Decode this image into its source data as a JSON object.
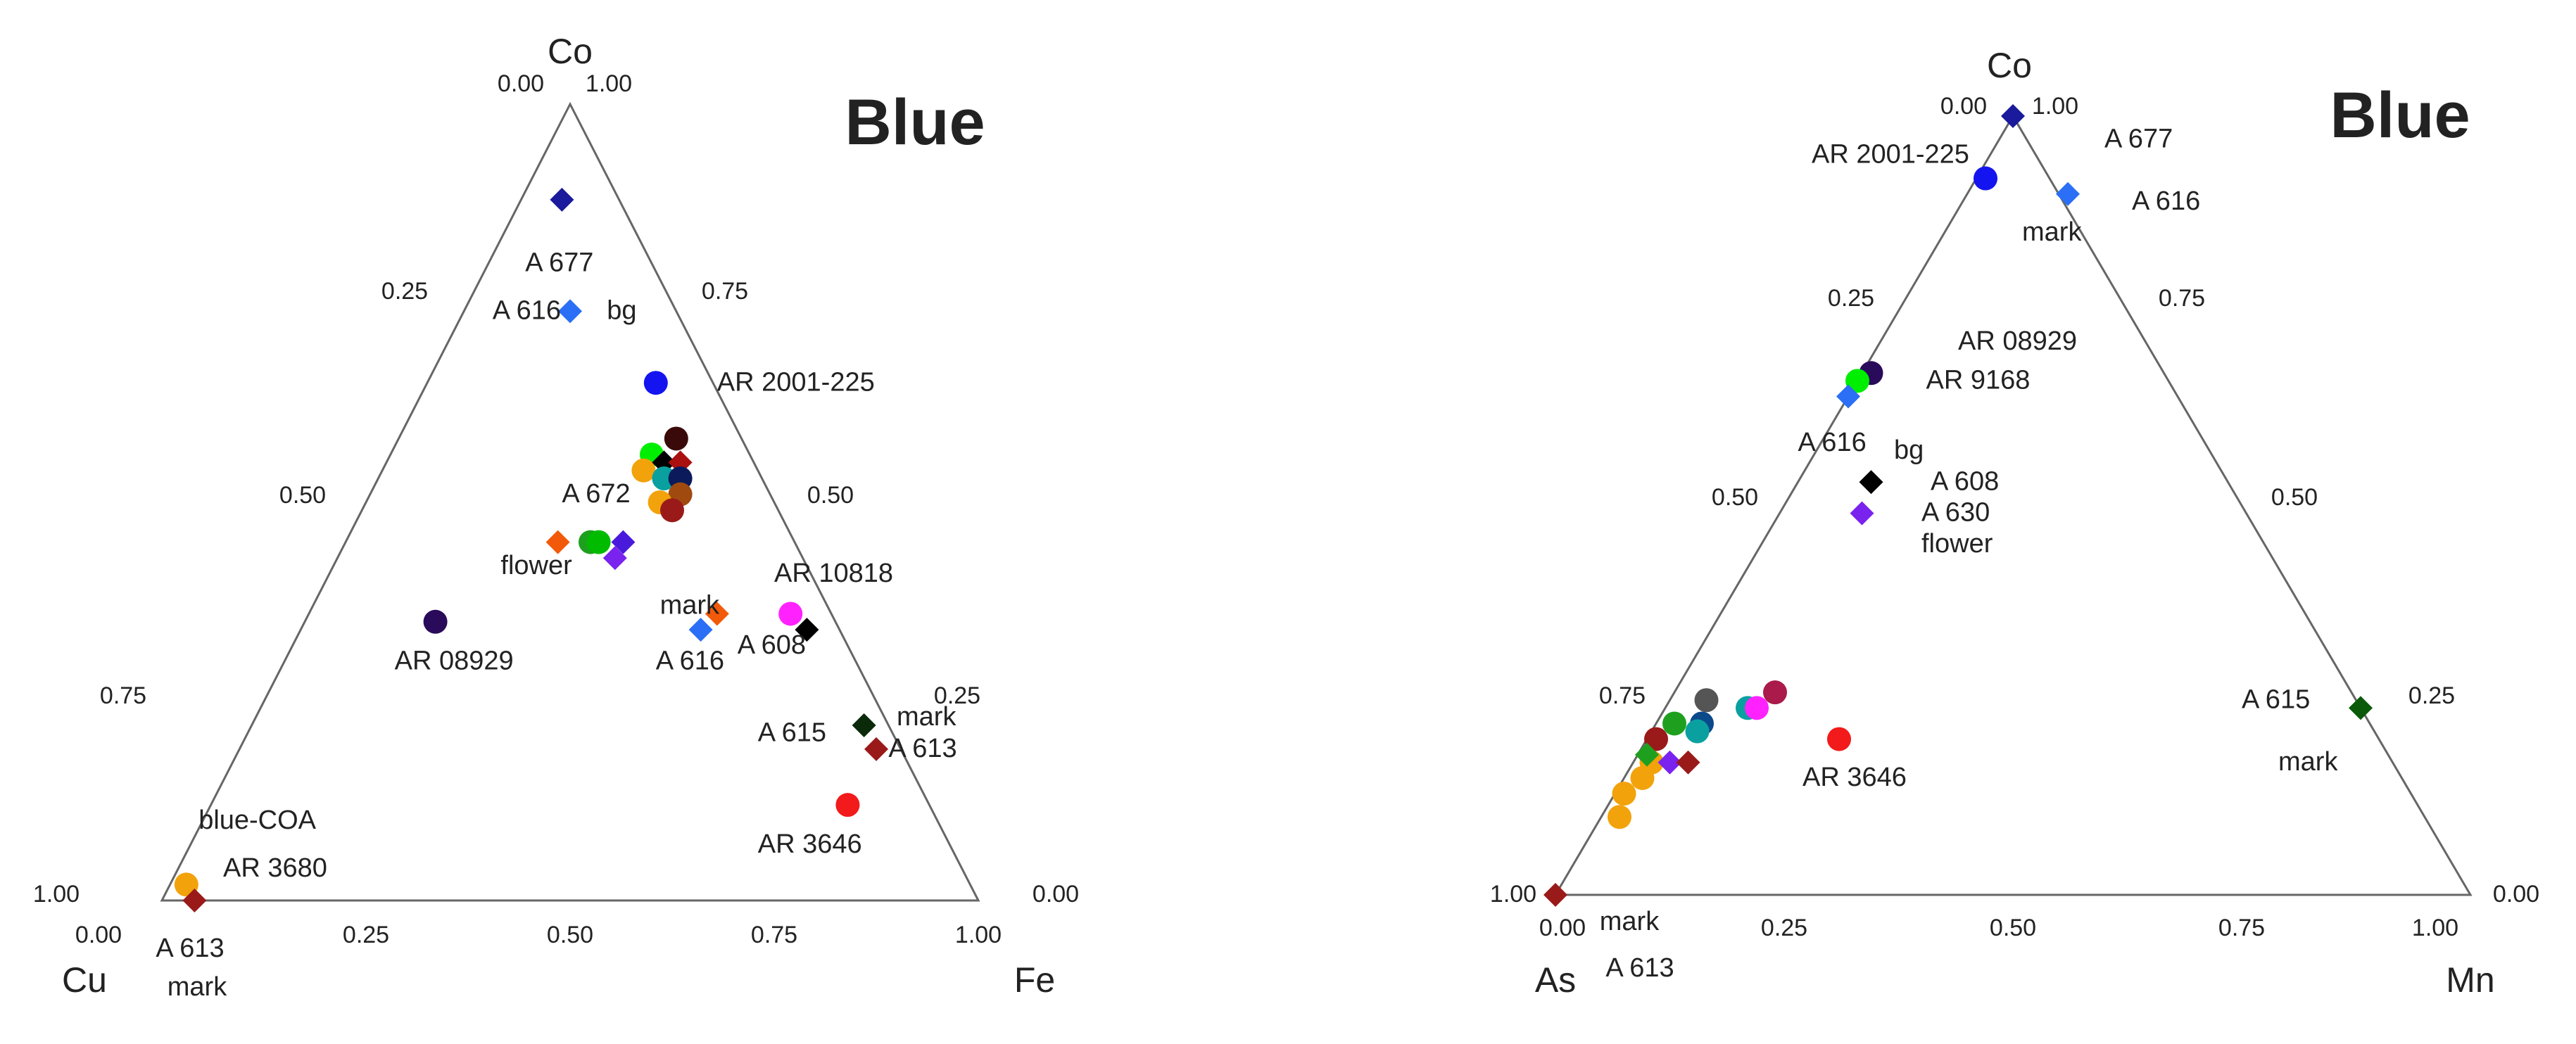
{
  "chart_data": [
    {
      "type": "scatter",
      "subtype": "ternary",
      "title": "Blue",
      "vertices": {
        "top": "Co",
        "left": "Cu",
        "right": "Fe"
      },
      "ticks": {
        "bottom": [
          "0.00",
          "0.25",
          "0.50",
          "0.75",
          "1.00"
        ],
        "left": [
          "0.00",
          "0.25",
          "0.50",
          "0.75",
          "1.00"
        ],
        "right": [
          "1.00",
          "0.75",
          "0.50",
          "0.25",
          "0.00"
        ]
      },
      "points": [
        {
          "fe": 0.05,
          "co": 0.88,
          "shape": "diamond",
          "color": "#1a1a9c"
        },
        {
          "fe": 0.13,
          "co": 0.74,
          "shape": "diamond",
          "color": "#2a6ff5"
        },
        {
          "fe": 0.28,
          "co": 0.65,
          "shape": "circle",
          "color": "#1414f0"
        },
        {
          "fe": 0.32,
          "co": 0.56,
          "shape": "circle",
          "color": "#00ee00"
        },
        {
          "fe": 0.34,
          "co": 0.58,
          "shape": "circle",
          "color": "#3a0a0a"
        },
        {
          "fe": 0.32,
          "co": 0.54,
          "shape": "circle",
          "color": "#f2a20a"
        },
        {
          "fe": 0.34,
          "co": 0.55,
          "shape": "diamond",
          "color": "#000000"
        },
        {
          "fe": 0.36,
          "co": 0.55,
          "shape": "diamond",
          "color": "#aa1010"
        },
        {
          "fe": 0.35,
          "co": 0.53,
          "shape": "circle",
          "color": "#0aa0a0"
        },
        {
          "fe": 0.37,
          "co": 0.53,
          "shape": "circle",
          "color": "#0a1a5a"
        },
        {
          "fe": 0.38,
          "co": 0.51,
          "shape": "circle",
          "color": "#a04a10"
        },
        {
          "fe": 0.36,
          "co": 0.5,
          "shape": "circle",
          "color": "#f2a20a"
        },
        {
          "fe": 0.38,
          "co": 0.49,
          "shape": "circle",
          "color": "#9a1a1a"
        },
        {
          "fe": 0.3,
          "co": 0.45,
          "shape": "circle",
          "color": "#1ea01e"
        },
        {
          "fe": 0.31,
          "co": 0.45,
          "shape": "circle",
          "color": "#00bb00"
        },
        {
          "fe": 0.34,
          "co": 0.45,
          "shape": "diamond",
          "color": "#4a1adc"
        },
        {
          "fe": 0.34,
          "co": 0.43,
          "shape": "diamond",
          "color": "#7a22ee"
        },
        {
          "fe": 0.26,
          "co": 0.45,
          "shape": "diamond",
          "color": "#f25a0a"
        },
        {
          "fe": 0.16,
          "co": 0.35,
          "shape": "circle",
          "color": "#2a0a5a"
        },
        {
          "fe": 0.5,
          "co": 0.36,
          "shape": "diamond",
          "color": "#f25a0a"
        },
        {
          "fe": 0.49,
          "co": 0.34,
          "shape": "diamond",
          "color": "#2a6ff5"
        },
        {
          "fe": 0.59,
          "co": 0.36,
          "shape": "circle",
          "color": "#ff22ff"
        },
        {
          "fe": 0.62,
          "co": 0.34,
          "shape": "diamond",
          "color": "#000000"
        },
        {
          "fe": 0.75,
          "co": 0.22,
          "shape": "diamond",
          "color": "#0a2a0a"
        },
        {
          "fe": 0.78,
          "co": 0.19,
          "shape": "diamond",
          "color": "#9a1a1a"
        },
        {
          "fe": 0.78,
          "co": 0.12,
          "shape": "circle",
          "color": "#f21a1a"
        },
        {
          "fe": 0.02,
          "co": 0.02,
          "shape": "circle",
          "color": "#f2a20a"
        },
        {
          "fe": 0.04,
          "co": 0.0,
          "shape": "diamond",
          "color": "#9a1a1a"
        }
      ],
      "labels": [
        {
          "text": "A 677",
          "fe": 0.05,
          "co": 0.79
        },
        {
          "text": "A 616",
          "fe": 0.04,
          "co": 0.73
        },
        {
          "text": "bg",
          "fe": 0.18,
          "co": 0.73
        },
        {
          "text": "AR 2001-225",
          "fe": 0.36,
          "co": 0.64
        },
        {
          "text": "A 672",
          "fe": 0.24,
          "co": 0.5
        },
        {
          "text": "flower",
          "fe": 0.21,
          "co": 0.41
        },
        {
          "text": "AR 08929",
          "fe": 0.14,
          "co": 0.29
        },
        {
          "text": "mark",
          "fe": 0.43,
          "co": 0.36
        },
        {
          "text": "A 616",
          "fe": 0.46,
          "co": 0.29
        },
        {
          "text": "AR 10818",
          "fe": 0.55,
          "co": 0.4
        },
        {
          "text": "A 608",
          "fe": 0.55,
          "co": 0.31
        },
        {
          "text": "mark",
          "fe": 0.79,
          "co": 0.22
        },
        {
          "text": "A 615",
          "fe": 0.63,
          "co": 0.2
        },
        {
          "text": "A 613",
          "fe": 0.8,
          "co": 0.18
        },
        {
          "text": "AR 3646",
          "fe": 0.7,
          "co": 0.06
        },
        {
          "text": "blue-COA",
          "fe": 0.0,
          "co": 0.09
        },
        {
          "text": "AR 3680",
          "fe": 0.06,
          "co": 0.03
        }
      ],
      "outside_labels": {
        "bottom_vertex_left": [
          "A 613",
          "mark"
        ]
      }
    },
    {
      "type": "scatter",
      "subtype": "ternary",
      "title": "Blue",
      "vertices": {
        "top": "Co",
        "left": "As",
        "right": "Mn"
      },
      "ticks": {
        "bottom": [
          "0.00",
          "0.25",
          "0.50",
          "0.75",
          "1.00"
        ],
        "left": [
          "0.00",
          "0.25",
          "0.50",
          "0.75",
          "1.00"
        ],
        "right": [
          "1.00",
          "0.75",
          "0.50",
          "0.25",
          "0.00"
        ]
      },
      "points": [
        {
          "mn": 0.0,
          "co": 1.0,
          "shape": "diamond",
          "color": "#1a1a9c"
        },
        {
          "mn": 0.01,
          "co": 0.92,
          "shape": "circle",
          "color": "#1414f0"
        },
        {
          "mn": 0.11,
          "co": 0.9,
          "shape": "diamond",
          "color": "#2a6ff5"
        },
        {
          "mn": 0.01,
          "co": 0.67,
          "shape": "circle",
          "color": "#2a0a5a"
        },
        {
          "mn": 0.0,
          "co": 0.66,
          "shape": "circle",
          "color": "#00ee00"
        },
        {
          "mn": 0.0,
          "co": 0.64,
          "shape": "diamond",
          "color": "#2a6ff5"
        },
        {
          "mn": 0.08,
          "co": 0.53,
          "shape": "diamond",
          "color": "#000000"
        },
        {
          "mn": 0.09,
          "co": 0.49,
          "shape": "diamond",
          "color": "#7a22ee"
        },
        {
          "mn": 0.76,
          "co": 0.24,
          "shape": "diamond",
          "color": "#0a5a0a"
        },
        {
          "mn": 0.04,
          "co": 0.25,
          "shape": "circle",
          "color": "#555555"
        },
        {
          "mn": 0.02,
          "co": 0.22,
          "shape": "circle",
          "color": "#1ea01e"
        },
        {
          "mn": 0.05,
          "co": 0.22,
          "shape": "circle",
          "color": "#0a4a8a"
        },
        {
          "mn": 0.05,
          "co": 0.21,
          "shape": "circle",
          "color": "#0aa0a0"
        },
        {
          "mn": 0.01,
          "co": 0.2,
          "shape": "circle",
          "color": "#9a1a1a"
        },
        {
          "mn": 0.09,
          "co": 0.24,
          "shape": "circle",
          "color": "#0aa0a0"
        },
        {
          "mn": 0.1,
          "co": 0.24,
          "shape": "circle",
          "color": "#ff22ff"
        },
        {
          "mn": 0.11,
          "co": 0.26,
          "shape": "circle",
          "color": "#aa1a4a"
        },
        {
          "mn": 0.02,
          "co": 0.17,
          "shape": "circle",
          "color": "#f2a20a"
        },
        {
          "mn": 0.01,
          "co": 0.18,
          "shape": "diamond",
          "color": "#1ea01e"
        },
        {
          "mn": 0.04,
          "co": 0.17,
          "shape": "diamond",
          "color": "#7a22ee"
        },
        {
          "mn": 0.06,
          "co": 0.17,
          "shape": "diamond",
          "color": "#9a1a1a"
        },
        {
          "mn": 0.02,
          "co": 0.15,
          "shape": "circle",
          "color": "#f2a20a"
        },
        {
          "mn": 0.01,
          "co": 0.13,
          "shape": "circle",
          "color": "#f2a20a"
        },
        {
          "mn": 0.02,
          "co": 0.1,
          "shape": "circle",
          "color": "#f2a20a"
        },
        {
          "mn": 0.21,
          "co": 0.2,
          "shape": "circle",
          "color": "#f21a1a"
        },
        {
          "mn": 0.0,
          "co": 0.0,
          "shape": "diamond",
          "color": "#9a1a1a"
        }
      ],
      "labels": [
        {
          "text": "A 677",
          "mn": 0.12,
          "co": 0.96
        },
        {
          "text": "AR 2001-225",
          "mn": -0.19,
          "co": 0.94
        },
        {
          "text": "A 616",
          "mn": 0.19,
          "co": 0.88
        },
        {
          "text": "mark",
          "mn": 0.09,
          "co": 0.84
        },
        {
          "text": "AR 08929",
          "mn": 0.09,
          "co": 0.7
        },
        {
          "text": "AR 9168",
          "mn": 0.08,
          "co": 0.65
        },
        {
          "text": "A 616",
          "mn": -0.02,
          "co": 0.57
        },
        {
          "text": "bg",
          "mn": 0.09,
          "co": 0.56
        },
        {
          "text": "A 608",
          "mn": 0.15,
          "co": 0.52
        },
        {
          "text": "A 630",
          "mn": 0.16,
          "co": 0.48
        },
        {
          "text": "flower",
          "mn": 0.18,
          "co": 0.44
        },
        {
          "text": "A 615",
          "mn": 0.63,
          "co": 0.24
        },
        {
          "text": "mark",
          "mn": 0.71,
          "co": 0.16
        },
        {
          "text": "AR 3646",
          "mn": 0.2,
          "co": 0.14
        }
      ],
      "outside_labels": {
        "bottom_vertex_right": [
          "mark",
          "A 613"
        ]
      }
    }
  ]
}
